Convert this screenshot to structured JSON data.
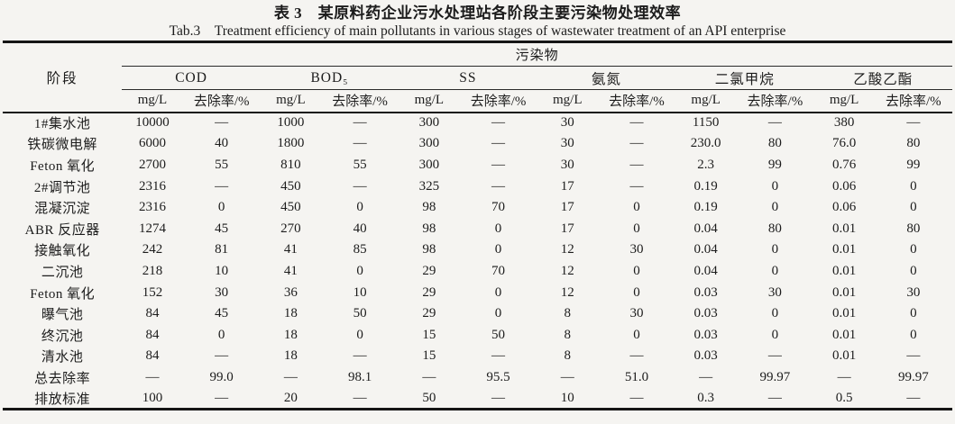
{
  "page": {
    "title_cn": "表 3　某原料药企业污水处理站各阶段主要污染物处理效率",
    "title_en": "Tab.3　Treatment efficiency of main pollutants in various stages of wastewater treatment of an API enterprise"
  },
  "colors": {
    "paper": "#f5f4f1",
    "ink": "#1c1c1c",
    "rule": "#151515"
  },
  "table": {
    "stage_header": "阶段",
    "pollutant_header": "污染物",
    "groups": [
      "COD",
      "BOD₅",
      "SS",
      "氨氮",
      "二氯甲烷",
      "乙酸乙酯"
    ],
    "unit_label": "mg/L",
    "removal_label": "去除率/%",
    "rows": [
      {
        "stage": "1#集水池",
        "values": [
          "10000",
          "—",
          "1000",
          "—",
          "300",
          "—",
          "30",
          "—",
          "1150",
          "—",
          "380",
          "—"
        ]
      },
      {
        "stage": "铁碳微电解",
        "values": [
          "6000",
          "40",
          "1800",
          "—",
          "300",
          "—",
          "30",
          "—",
          "230.0",
          "80",
          "76.0",
          "80"
        ]
      },
      {
        "stage": "Feton 氧化",
        "values": [
          "2700",
          "55",
          "810",
          "55",
          "300",
          "—",
          "30",
          "—",
          "2.3",
          "99",
          "0.76",
          "99"
        ]
      },
      {
        "stage": "2#调节池",
        "values": [
          "2316",
          "—",
          "450",
          "—",
          "325",
          "—",
          "17",
          "—",
          "0.19",
          "0",
          "0.06",
          "0"
        ]
      },
      {
        "stage": "混凝沉淀",
        "values": [
          "2316",
          "0",
          "450",
          "0",
          "98",
          "70",
          "17",
          "0",
          "0.19",
          "0",
          "0.06",
          "0"
        ]
      },
      {
        "stage": "ABR 反应器",
        "values": [
          "1274",
          "45",
          "270",
          "40",
          "98",
          "0",
          "17",
          "0",
          "0.04",
          "80",
          "0.01",
          "80"
        ]
      },
      {
        "stage": "接触氧化",
        "values": [
          "242",
          "81",
          "41",
          "85",
          "98",
          "0",
          "12",
          "30",
          "0.04",
          "0",
          "0.01",
          "0"
        ]
      },
      {
        "stage": "二沉池",
        "values": [
          "218",
          "10",
          "41",
          "0",
          "29",
          "70",
          "12",
          "0",
          "0.04",
          "0",
          "0.01",
          "0"
        ]
      },
      {
        "stage": "Feton 氧化",
        "values": [
          "152",
          "30",
          "36",
          "10",
          "29",
          "0",
          "12",
          "0",
          "0.03",
          "30",
          "0.01",
          "30"
        ]
      },
      {
        "stage": "曝气池",
        "values": [
          "84",
          "45",
          "18",
          "50",
          "29",
          "0",
          "8",
          "30",
          "0.03",
          "0",
          "0.01",
          "0"
        ]
      },
      {
        "stage": "终沉池",
        "values": [
          "84",
          "0",
          "18",
          "0",
          "15",
          "50",
          "8",
          "0",
          "0.03",
          "0",
          "0.01",
          "0"
        ]
      },
      {
        "stage": "清水池",
        "values": [
          "84",
          "—",
          "18",
          "—",
          "15",
          "—",
          "8",
          "—",
          "0.03",
          "—",
          "0.01",
          "—"
        ]
      },
      {
        "stage": "总去除率",
        "values": [
          "—",
          "99.0",
          "—",
          "98.1",
          "—",
          "95.5",
          "—",
          "51.0",
          "—",
          "99.97",
          "—",
          "99.97"
        ]
      },
      {
        "stage": "排放标准",
        "values": [
          "100",
          "—",
          "20",
          "—",
          "50",
          "—",
          "10",
          "—",
          "0.3",
          "—",
          "0.5",
          "—"
        ]
      }
    ]
  }
}
